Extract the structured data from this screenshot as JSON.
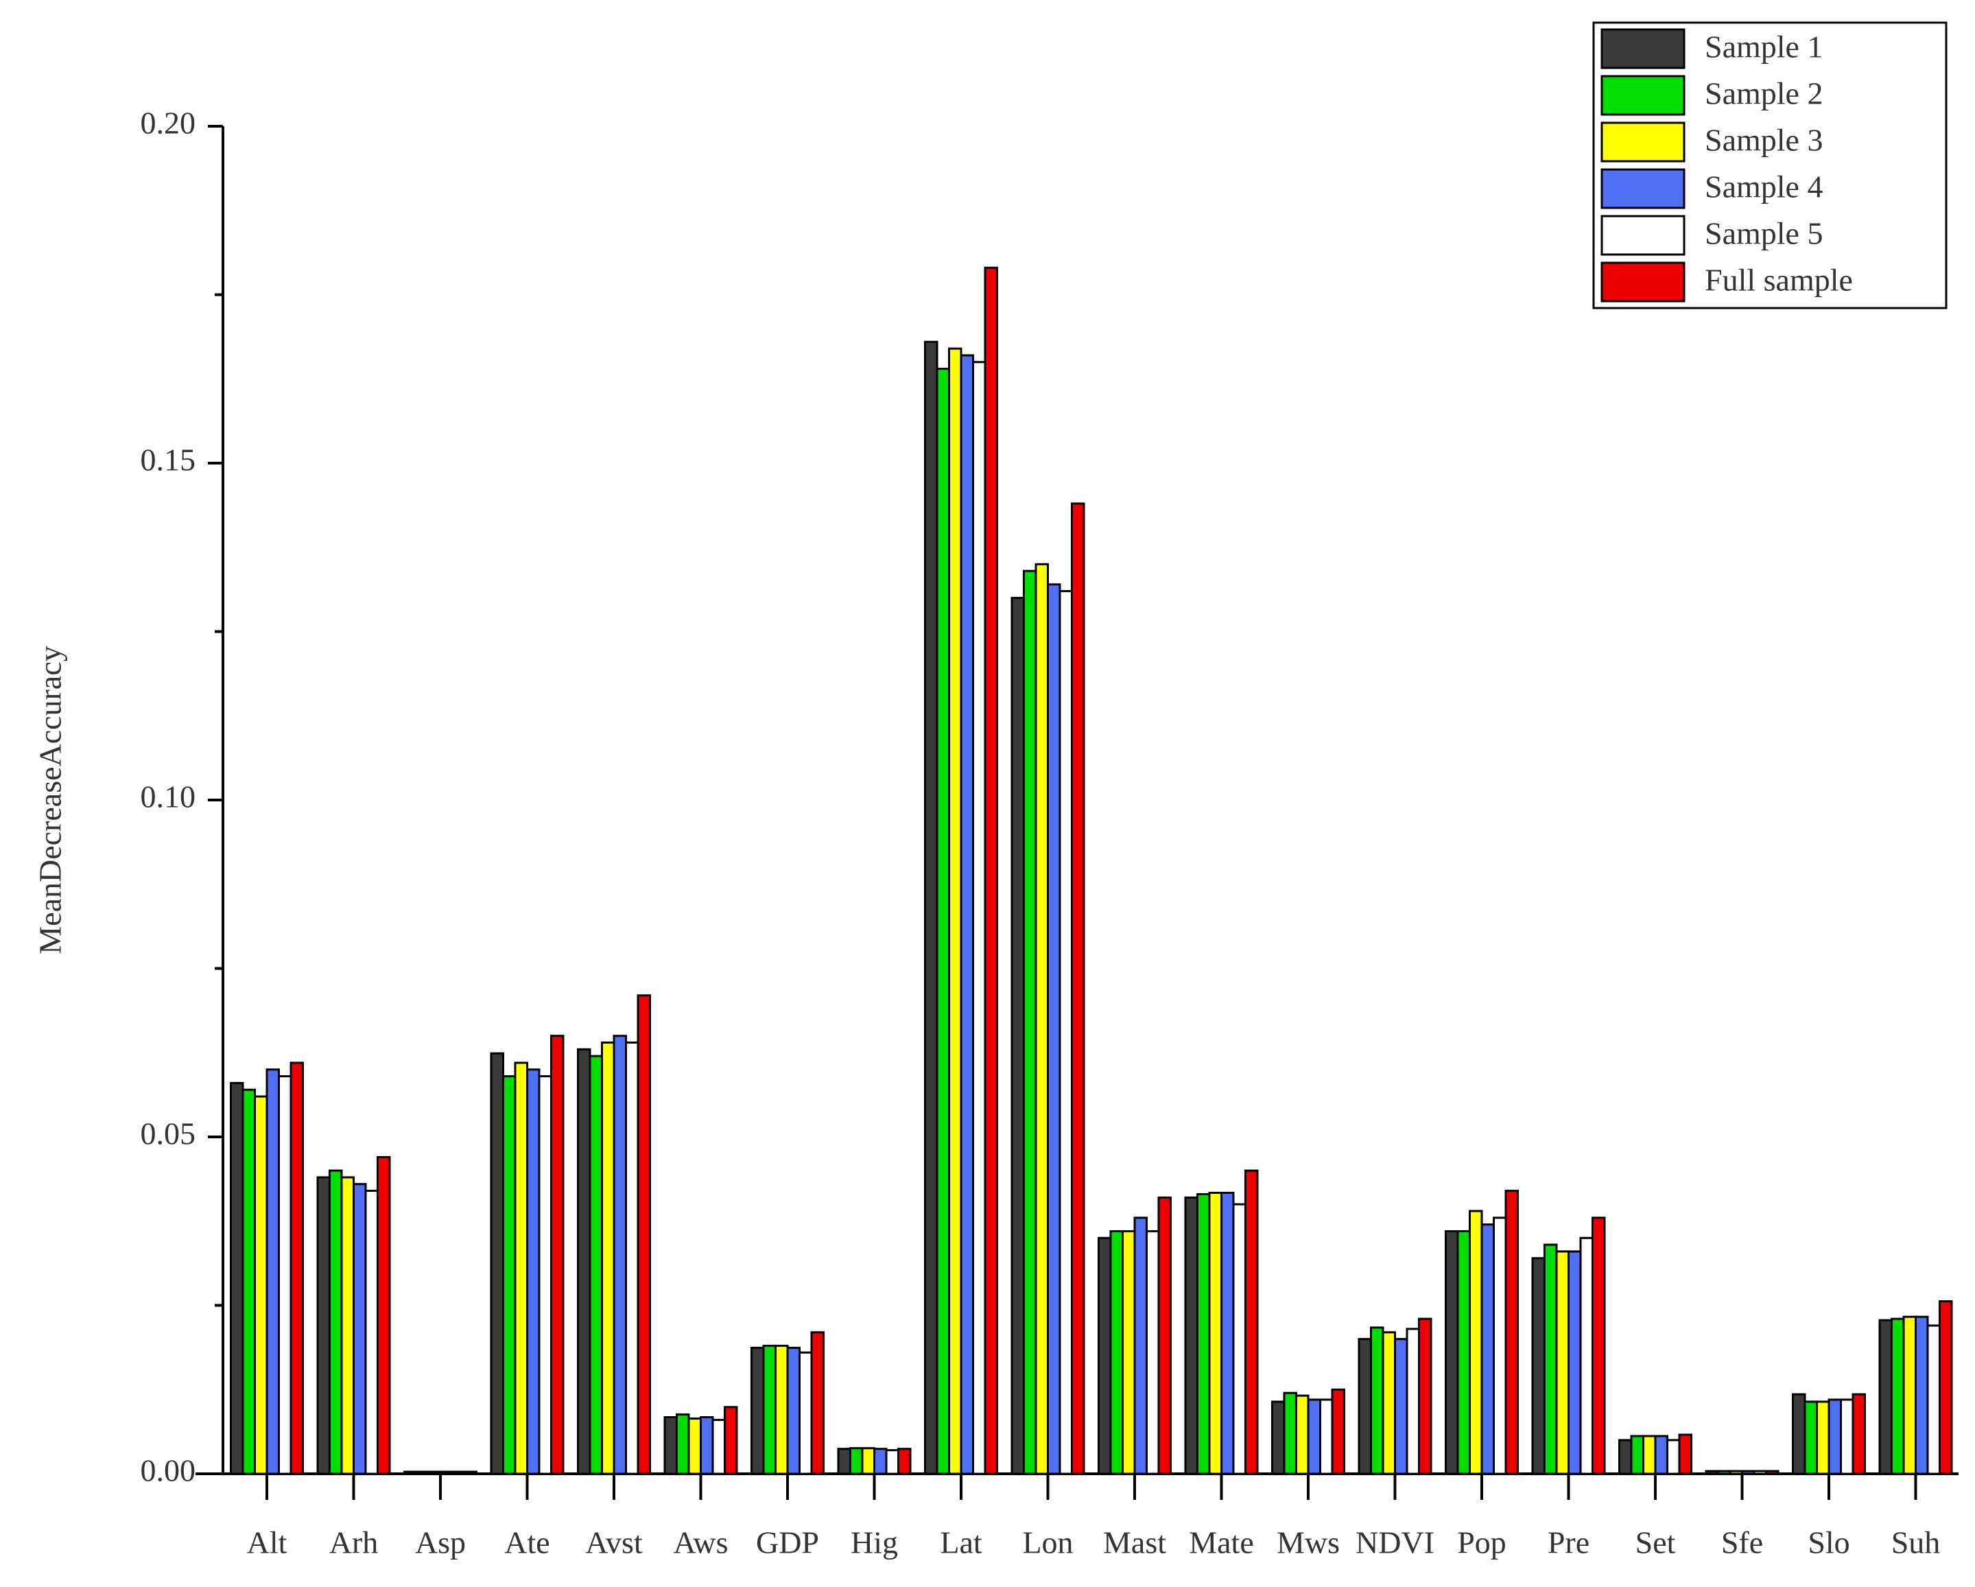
{
  "chart_data": {
    "type": "bar",
    "y_label": "MeanDecreaseAccuracy",
    "categories": [
      "Alt",
      "Arh",
      "Asp",
      "Ate",
      "Avst",
      "Aws",
      "GDP",
      "Hig",
      "Lat",
      "Lon",
      "Mast",
      "Mate",
      "Mws",
      "NDVI",
      "Pop",
      "Pre",
      "Set",
      "Sfe",
      "Slo",
      "Suh"
    ],
    "series": [
      {
        "name": "Sample 1",
        "color": "#3a3a3a",
        "values": [
          0.058,
          0.044,
          0.0003,
          0.0624,
          0.063,
          0.0084,
          0.0187,
          0.0037,
          0.168,
          0.13,
          0.035,
          0.041,
          0.0107,
          0.02,
          0.036,
          0.032,
          0.005,
          0.0004,
          0.0118,
          0.0228
        ]
      },
      {
        "name": "Sample 2",
        "color": "#00dd00",
        "values": [
          0.057,
          0.045,
          0.0003,
          0.059,
          0.062,
          0.0088,
          0.019,
          0.0038,
          0.164,
          0.134,
          0.036,
          0.0415,
          0.012,
          0.0217,
          0.036,
          0.034,
          0.0056,
          0.0004,
          0.0107,
          0.023
        ]
      },
      {
        "name": "Sample 3",
        "color": "#ffff00",
        "values": [
          0.056,
          0.044,
          0.0003,
          0.061,
          0.064,
          0.0082,
          0.019,
          0.0038,
          0.167,
          0.135,
          0.036,
          0.0417,
          0.0116,
          0.021,
          0.039,
          0.033,
          0.0056,
          0.0004,
          0.0107,
          0.0233
        ]
      },
      {
        "name": "Sample 4",
        "color": "#4f6ff5",
        "values": [
          0.06,
          0.043,
          0.0003,
          0.06,
          0.065,
          0.0084,
          0.0187,
          0.0037,
          0.166,
          0.132,
          0.038,
          0.0417,
          0.011,
          0.02,
          0.037,
          0.033,
          0.0056,
          0.0004,
          0.011,
          0.0233
        ]
      },
      {
        "name": "Sample 5",
        "color": "#ffffff",
        "values": [
          0.059,
          0.042,
          0.0003,
          0.059,
          0.064,
          0.008,
          0.018,
          0.0035,
          0.165,
          0.131,
          0.036,
          0.04,
          0.011,
          0.0215,
          0.038,
          0.035,
          0.005,
          0.0004,
          0.011,
          0.022
        ]
      },
      {
        "name": "Full sample",
        "color": "#ee0000",
        "values": [
          0.061,
          0.047,
          0.0003,
          0.065,
          0.071,
          0.0099,
          0.021,
          0.0037,
          0.179,
          0.144,
          0.041,
          0.045,
          0.0125,
          0.023,
          0.042,
          0.038,
          0.0058,
          0.0004,
          0.0118,
          0.0256
        ]
      }
    ],
    "ylim": [
      0,
      0.2
    ],
    "yticks": [
      {
        "value": 0,
        "label": "0.00"
      },
      {
        "value": 0.05,
        "label": "0.05"
      },
      {
        "value": 0.1,
        "label": "0.10"
      },
      {
        "value": 0.15,
        "label": "0.15"
      },
      {
        "value": 0.2,
        "label": "0.20"
      }
    ],
    "minor_yticks": [
      0.025,
      0.075,
      0.125,
      0.175
    ],
    "legend": "top-right"
  }
}
